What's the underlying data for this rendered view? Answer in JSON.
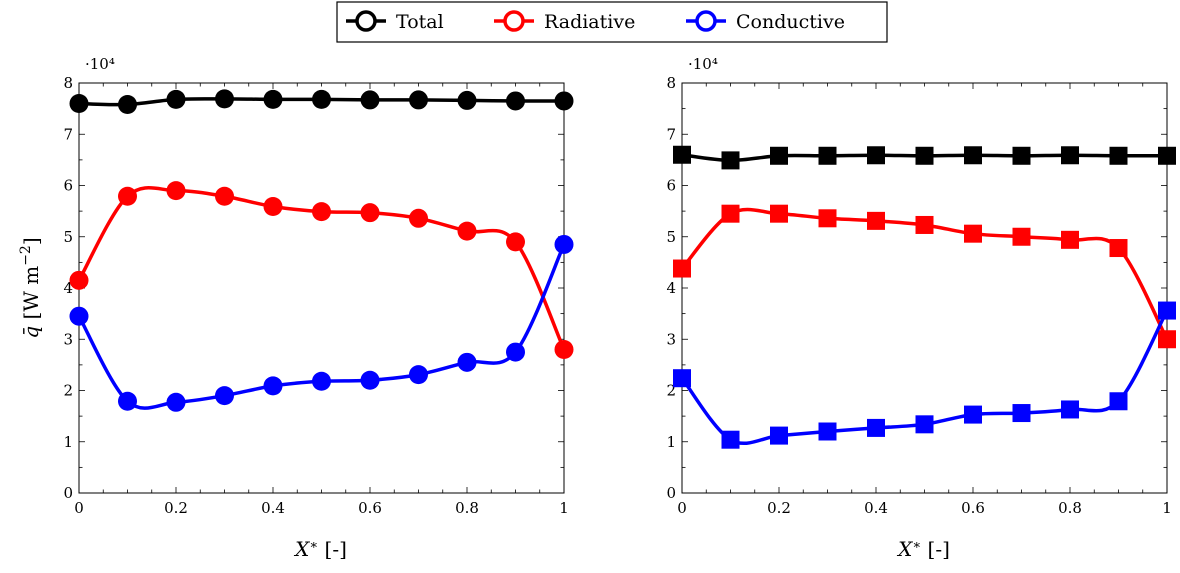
{
  "legend": {
    "entries": [
      {
        "label": "Total",
        "color": "#000000"
      },
      {
        "label": "Radiative",
        "color": "#ff0000"
      },
      {
        "label": "Conductive",
        "color": "#0000ff"
      }
    ]
  },
  "chart_data": [
    {
      "type": "line",
      "marker": "circle",
      "x": [
        0,
        0.1,
        0.2,
        0.3,
        0.4,
        0.5,
        0.6,
        0.7,
        0.8,
        0.9,
        1.0
      ],
      "xlabel": "X* [-]",
      "ylabel": "q̄ [W m−2]",
      "ylim": [
        0,
        80000
      ],
      "xlim": [
        0,
        1
      ],
      "xticks": [
        "0",
        "0.2",
        "0.4",
        "0.6",
        "0.8",
        "1"
      ],
      "yticks": [
        "0",
        "1",
        "2",
        "3",
        "4",
        "5",
        "6",
        "7",
        "8"
      ],
      "y_multiplier": "·10⁴",
      "series": [
        {
          "name": "Total",
          "color": "#000000",
          "values": [
            76000,
            75800,
            76800,
            76900,
            76800,
            76800,
            76700,
            76700,
            76600,
            76500,
            76500
          ]
        },
        {
          "name": "Radiative",
          "color": "#ff0000",
          "values": [
            41500,
            57900,
            59000,
            57900,
            55900,
            54900,
            54700,
            53600,
            51100,
            49000,
            28000
          ]
        },
        {
          "name": "Conductive",
          "color": "#0000ff",
          "values": [
            34500,
            17900,
            17700,
            19000,
            20900,
            21800,
            22000,
            23100,
            25500,
            27500,
            48500
          ]
        }
      ]
    },
    {
      "type": "line",
      "marker": "square",
      "x": [
        0,
        0.1,
        0.2,
        0.3,
        0.4,
        0.5,
        0.6,
        0.7,
        0.8,
        0.9,
        1.0
      ],
      "xlabel": "X* [-]",
      "ylabel": "",
      "ylim": [
        0,
        80000
      ],
      "xlim": [
        0,
        1
      ],
      "xticks": [
        "0",
        "0.2",
        "0.4",
        "0.6",
        "0.8",
        "1"
      ],
      "yticks": [
        "0",
        "1",
        "2",
        "3",
        "4",
        "5",
        "6",
        "7",
        "8"
      ],
      "y_multiplier": "·10⁴",
      "series": [
        {
          "name": "Total",
          "color": "#000000",
          "values": [
            66000,
            64900,
            65800,
            65800,
            65900,
            65800,
            65900,
            65800,
            65900,
            65800,
            65800
          ]
        },
        {
          "name": "Radiative",
          "color": "#ff0000",
          "values": [
            43800,
            54500,
            54500,
            53600,
            53100,
            52300,
            50600,
            50000,
            49400,
            47800,
            30000
          ]
        },
        {
          "name": "Conductive",
          "color": "#0000ff",
          "values": [
            22400,
            10400,
            11200,
            12000,
            12700,
            13400,
            15300,
            15600,
            16300,
            17900,
            35600
          ]
        }
      ]
    }
  ]
}
